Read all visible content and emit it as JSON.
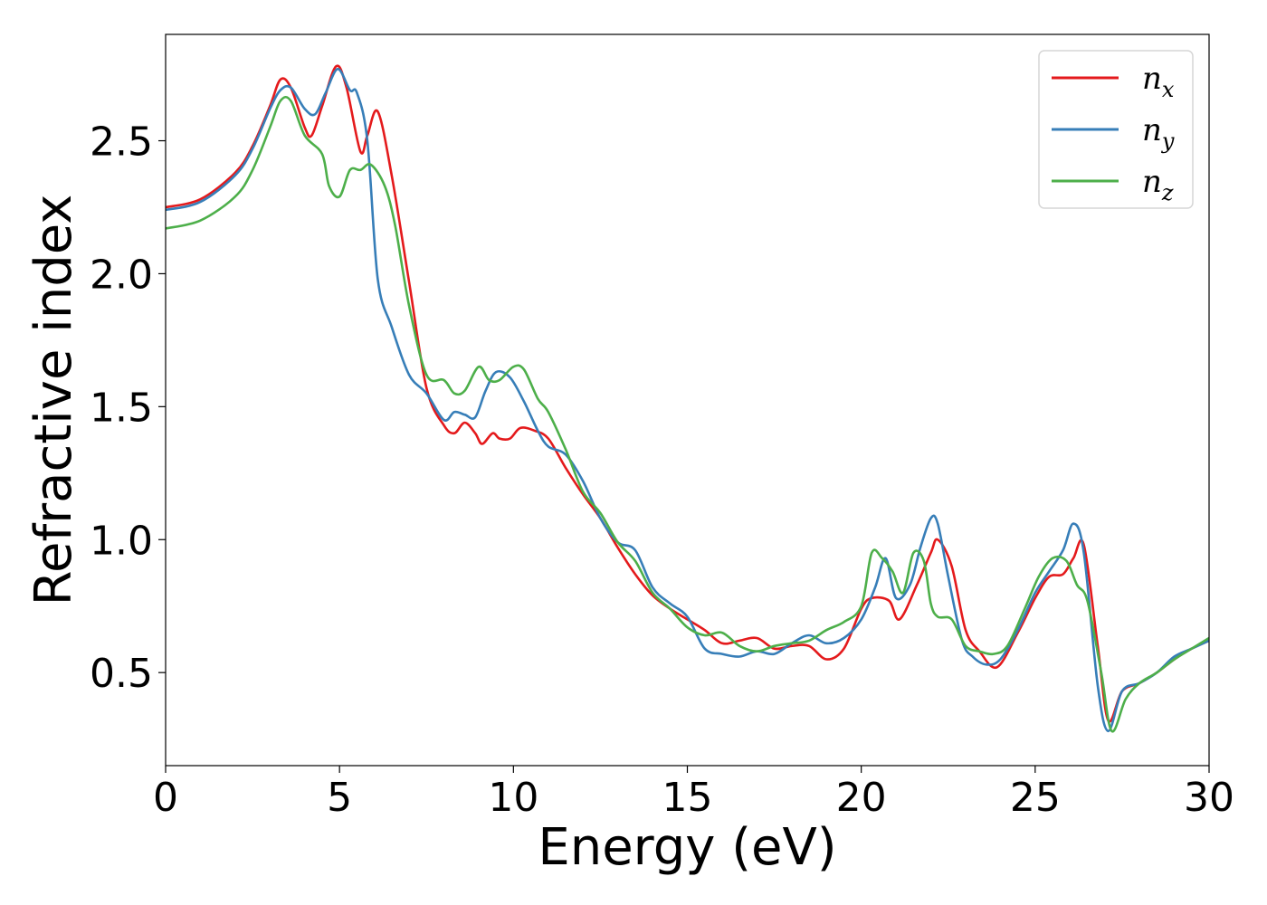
{
  "chart_data": {
    "type": "line",
    "xlabel": "Energy (eV)",
    "ylabel": "Refractive index",
    "xlim": [
      0,
      30
    ],
    "ylim": [
      0.15,
      2.9
    ],
    "x_ticks": [
      "0",
      "5",
      "10",
      "15",
      "20",
      "25",
      "30"
    ],
    "y_ticks": [
      "0.5",
      "1.0",
      "1.5",
      "2.0",
      "2.5"
    ],
    "grid": false,
    "legend_position": "top-right",
    "series": [
      {
        "name_base": "n",
        "name_sub": "x",
        "color": "#e41a1c",
        "x": [
          0,
          1,
          2,
          2.5,
          3,
          3.3,
          3.6,
          4,
          4.2,
          4.5,
          4.9,
          5.2,
          5.6,
          5.8,
          6.1,
          6.5,
          7,
          7.5,
          8,
          8.3,
          8.6,
          8.9,
          9.1,
          9.4,
          9.6,
          9.9,
          10.2,
          10.6,
          11,
          11.5,
          12,
          12.5,
          13,
          13.5,
          14,
          14.5,
          15,
          15.5,
          16,
          16.5,
          17,
          17.5,
          18,
          18.5,
          19,
          19.5,
          20,
          20.3,
          20.8,
          21.1,
          21.6,
          22,
          22.2,
          22.6,
          23,
          23.4,
          23.9,
          24.5,
          25,
          25.4,
          25.8,
          26.1,
          26.4,
          26.8,
          27.1,
          27.5,
          28,
          28.5,
          29,
          29.5,
          30
        ],
        "y": [
          2.25,
          2.28,
          2.38,
          2.48,
          2.63,
          2.73,
          2.7,
          2.55,
          2.52,
          2.63,
          2.78,
          2.7,
          2.46,
          2.52,
          2.61,
          2.37,
          1.97,
          1.57,
          1.43,
          1.4,
          1.44,
          1.4,
          1.36,
          1.4,
          1.38,
          1.38,
          1.42,
          1.41,
          1.38,
          1.27,
          1.17,
          1.08,
          0.97,
          0.87,
          0.79,
          0.74,
          0.7,
          0.66,
          0.61,
          0.62,
          0.63,
          0.59,
          0.6,
          0.6,
          0.55,
          0.59,
          0.74,
          0.78,
          0.77,
          0.7,
          0.83,
          0.95,
          1.0,
          0.9,
          0.66,
          0.58,
          0.52,
          0.65,
          0.78,
          0.86,
          0.87,
          0.93,
          0.98,
          0.6,
          0.32,
          0.43,
          0.46,
          0.5,
          0.55,
          0.59,
          0.62
        ]
      },
      {
        "name_base": "n",
        "name_sub": "y",
        "color": "#377eb8",
        "x": [
          0,
          1,
          2,
          2.5,
          3,
          3.3,
          3.6,
          4,
          4.3,
          4.6,
          4.95,
          5.3,
          5.5,
          5.8,
          6.1,
          6.5,
          7,
          7.5,
          8,
          8.3,
          8.6,
          8.9,
          9.2,
          9.5,
          9.9,
          10.3,
          10.7,
          11,
          11.5,
          12,
          12.5,
          13,
          13.5,
          14,
          14.5,
          15,
          15.5,
          16,
          16.5,
          17,
          17.5,
          18,
          18.5,
          19,
          19.5,
          20,
          20.4,
          20.7,
          21,
          21.4,
          21.7,
          22,
          22.2,
          22.5,
          22.9,
          23.2,
          23.6,
          24,
          24.5,
          25,
          25.4,
          25.8,
          26.1,
          26.4,
          26.8,
          27.1,
          27.5,
          28,
          28.5,
          29,
          29.5,
          30
        ],
        "y": [
          2.24,
          2.27,
          2.37,
          2.47,
          2.62,
          2.69,
          2.7,
          2.62,
          2.6,
          2.68,
          2.77,
          2.69,
          2.68,
          2.5,
          1.98,
          1.8,
          1.62,
          1.55,
          1.45,
          1.48,
          1.47,
          1.46,
          1.56,
          1.63,
          1.61,
          1.52,
          1.41,
          1.35,
          1.32,
          1.22,
          1.08,
          0.99,
          0.96,
          0.82,
          0.76,
          0.71,
          0.59,
          0.57,
          0.56,
          0.58,
          0.57,
          0.61,
          0.64,
          0.61,
          0.63,
          0.7,
          0.82,
          0.93,
          0.78,
          0.83,
          0.97,
          1.08,
          1.06,
          0.86,
          0.62,
          0.56,
          0.53,
          0.55,
          0.66,
          0.8,
          0.88,
          0.96,
          1.06,
          0.95,
          0.45,
          0.28,
          0.43,
          0.46,
          0.5,
          0.56,
          0.59,
          0.62
        ]
      },
      {
        "name_base": "n",
        "name_sub": "z",
        "color": "#4daf4a",
        "x": [
          0,
          1,
          2,
          2.5,
          3,
          3.3,
          3.6,
          4,
          4.5,
          4.7,
          5,
          5.3,
          5.6,
          5.9,
          6.3,
          6.6,
          7,
          7.5,
          8,
          8.3,
          8.6,
          9,
          9.3,
          9.6,
          10,
          10.3,
          10.7,
          11,
          11.5,
          12,
          12.5,
          13,
          13.5,
          14,
          14.5,
          15,
          15.5,
          16,
          16.5,
          17,
          17.5,
          18,
          18.5,
          19,
          19.5,
          20,
          20.3,
          20.6,
          20.9,
          21.2,
          21.5,
          21.8,
          22,
          22.2,
          22.6,
          23,
          23.4,
          23.8,
          24.2,
          24.7,
          25.1,
          25.5,
          25.9,
          26.2,
          26.5,
          26.9,
          27.2,
          27.6,
          28,
          28.5,
          29,
          29.5,
          30
        ],
        "y": [
          2.17,
          2.2,
          2.29,
          2.39,
          2.55,
          2.65,
          2.65,
          2.52,
          2.45,
          2.33,
          2.29,
          2.39,
          2.39,
          2.41,
          2.33,
          2.18,
          1.88,
          1.62,
          1.6,
          1.55,
          1.56,
          1.65,
          1.6,
          1.6,
          1.65,
          1.64,
          1.53,
          1.48,
          1.34,
          1.18,
          1.1,
          0.99,
          0.92,
          0.8,
          0.74,
          0.67,
          0.64,
          0.65,
          0.6,
          0.58,
          0.6,
          0.61,
          0.62,
          0.66,
          0.69,
          0.75,
          0.95,
          0.93,
          0.88,
          0.8,
          0.95,
          0.92,
          0.76,
          0.71,
          0.7,
          0.6,
          0.58,
          0.57,
          0.6,
          0.74,
          0.86,
          0.93,
          0.92,
          0.83,
          0.77,
          0.5,
          0.28,
          0.4,
          0.46,
          0.5,
          0.55,
          0.59,
          0.63
        ]
      }
    ]
  }
}
